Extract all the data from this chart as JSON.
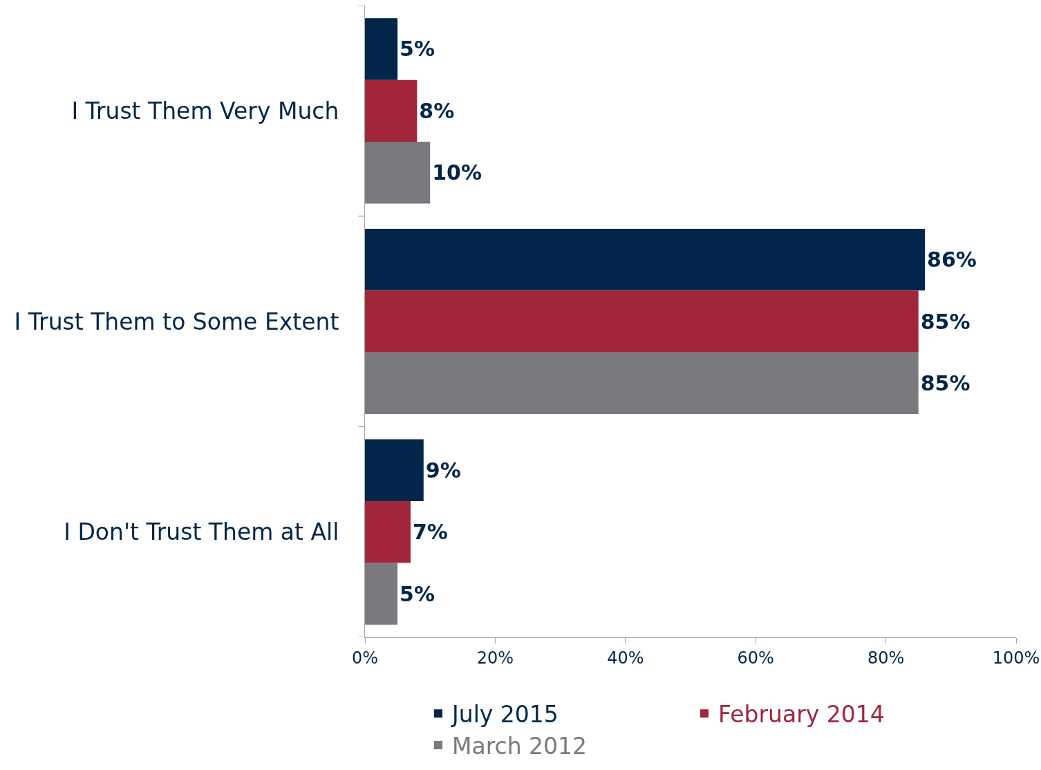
{
  "chart_data": {
    "type": "bar",
    "orientation": "horizontal",
    "categories": [
      "I Trust Them Very Much",
      "I Trust Them to Some Extent",
      "I Don't Trust Them at All"
    ],
    "series": [
      {
        "name": "July 2015",
        "color": "#02264a",
        "values": [
          5,
          86,
          9
        ],
        "value_labels": [
          "5%",
          "86%",
          "9%"
        ]
      },
      {
        "name": "February 2014",
        "color": "#a12639",
        "values": [
          8,
          85,
          7
        ],
        "value_labels": [
          "8%",
          "85%",
          "7%"
        ]
      },
      {
        "name": "March 2012",
        "color": "#7a7a7e",
        "values": [
          10,
          85,
          5
        ],
        "value_labels": [
          "10%",
          "85%",
          "5%"
        ]
      }
    ],
    "xlim": [
      0,
      100
    ],
    "xticks": [
      {
        "value": 0,
        "label": "0%"
      },
      {
        "value": 20,
        "label": "20%"
      },
      {
        "value": 40,
        "label": "40%"
      },
      {
        "value": 60,
        "label": "60%"
      },
      {
        "value": 80,
        "label": "80%"
      },
      {
        "value": 100,
        "label": "100%"
      }
    ],
    "grid": false,
    "legend": "bottom"
  }
}
